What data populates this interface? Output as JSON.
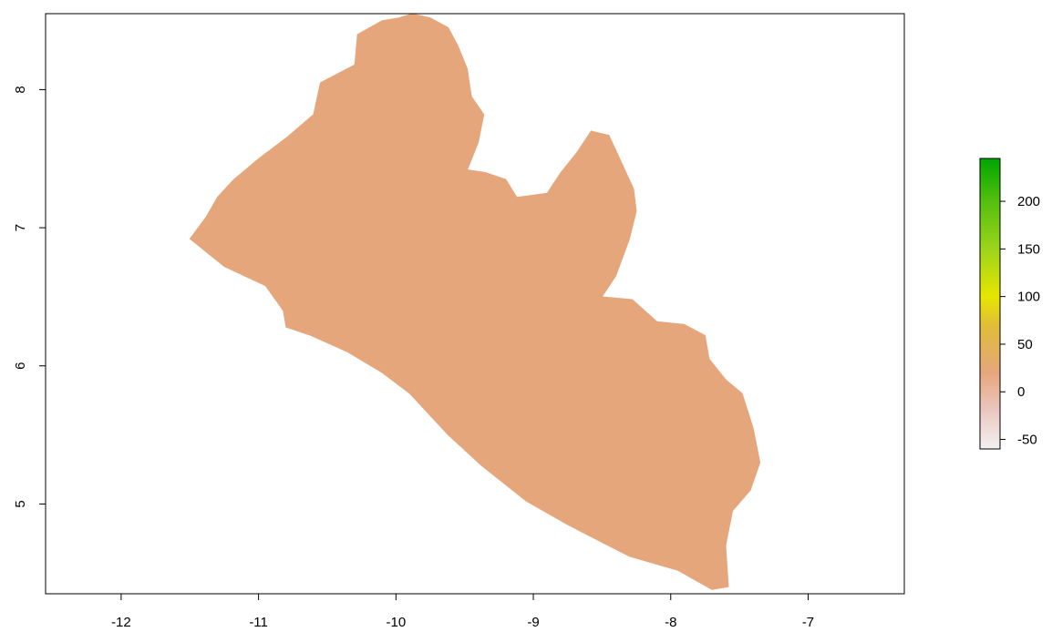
{
  "chart_data": {
    "type": "heatmap",
    "title": "",
    "xlabel": "",
    "ylabel": "",
    "xlim": [
      -12.55,
      -6.3
    ],
    "ylim": [
      4.35,
      8.55
    ],
    "x_ticks": [
      {
        "value": -12,
        "label": "-12"
      },
      {
        "value": -11,
        "label": "-11"
      },
      {
        "value": -10,
        "label": "-10"
      },
      {
        "value": -9,
        "label": "-9"
      },
      {
        "value": -8,
        "label": "-8"
      },
      {
        "value": -7,
        "label": "-7"
      }
    ],
    "y_ticks": [
      {
        "value": 5,
        "label": "5"
      },
      {
        "value": 6,
        "label": "6"
      },
      {
        "value": 7,
        "label": "7"
      },
      {
        "value": 8,
        "label": "8"
      }
    ],
    "region": {
      "fill_color": "#E6A67C",
      "approx_value": 10,
      "outline_lonlat": [
        [
          -9.98,
          8.52
        ],
        [
          -9.88,
          8.55
        ],
        [
          -9.75,
          8.52
        ],
        [
          -9.62,
          8.45
        ],
        [
          -9.55,
          8.32
        ],
        [
          -9.48,
          8.15
        ],
        [
          -9.45,
          7.95
        ],
        [
          -9.36,
          7.82
        ],
        [
          -9.4,
          7.62
        ],
        [
          -9.48,
          7.42
        ],
        [
          -9.35,
          7.4
        ],
        [
          -9.2,
          7.35
        ],
        [
          -9.12,
          7.22
        ],
        [
          -8.9,
          7.25
        ],
        [
          -8.8,
          7.4
        ],
        [
          -8.68,
          7.55
        ],
        [
          -8.58,
          7.7
        ],
        [
          -8.45,
          7.67
        ],
        [
          -8.38,
          7.52
        ],
        [
          -8.27,
          7.28
        ],
        [
          -8.25,
          7.12
        ],
        [
          -8.3,
          6.92
        ],
        [
          -8.4,
          6.65
        ],
        [
          -8.5,
          6.5
        ],
        [
          -8.28,
          6.48
        ],
        [
          -8.1,
          6.32
        ],
        [
          -7.9,
          6.3
        ],
        [
          -7.75,
          6.22
        ],
        [
          -7.72,
          6.05
        ],
        [
          -7.6,
          5.9
        ],
        [
          -7.48,
          5.8
        ],
        [
          -7.4,
          5.55
        ],
        [
          -7.35,
          5.3
        ],
        [
          -7.42,
          5.1
        ],
        [
          -7.55,
          4.95
        ],
        [
          -7.6,
          4.7
        ],
        [
          -7.58,
          4.4
        ],
        [
          -7.7,
          4.38
        ],
        [
          -7.95,
          4.52
        ],
        [
          -8.3,
          4.62
        ],
        [
          -8.75,
          4.85
        ],
        [
          -9.05,
          5.02
        ],
        [
          -9.38,
          5.28
        ],
        [
          -9.62,
          5.5
        ],
        [
          -9.9,
          5.8
        ],
        [
          -10.1,
          5.95
        ],
        [
          -10.35,
          6.1
        ],
        [
          -10.62,
          6.22
        ],
        [
          -10.8,
          6.28
        ],
        [
          -10.82,
          6.4
        ],
        [
          -10.95,
          6.58
        ],
        [
          -11.25,
          6.72
        ],
        [
          -11.5,
          6.92
        ],
        [
          -11.38,
          7.08
        ],
        [
          -11.3,
          7.22
        ],
        [
          -11.18,
          7.35
        ],
        [
          -11.0,
          7.5
        ],
        [
          -10.8,
          7.65
        ],
        [
          -10.6,
          7.82
        ],
        [
          -10.55,
          8.05
        ],
        [
          -10.3,
          8.18
        ],
        [
          -10.28,
          8.4
        ],
        [
          -10.1,
          8.5
        ]
      ]
    },
    "legend": {
      "placement": "right",
      "min": -60,
      "max": 245,
      "ticks": [
        {
          "value": 200,
          "label": "200"
        },
        {
          "value": 150,
          "label": "150"
        },
        {
          "value": 100,
          "label": "100"
        },
        {
          "value": 50,
          "label": "50"
        },
        {
          "value": 0,
          "label": "0"
        },
        {
          "value": -50,
          "label": "-50"
        }
      ],
      "color_stops": [
        {
          "value": -60,
          "color": "#F2F2F2"
        },
        {
          "value": -20,
          "color": "#EBC7C0"
        },
        {
          "value": 20,
          "color": "#E6A67C"
        },
        {
          "value": 70,
          "color": "#E0BE37"
        },
        {
          "value": 100,
          "color": "#E6E600"
        },
        {
          "value": 150,
          "color": "#9CD41B"
        },
        {
          "value": 200,
          "color": "#54BF0F"
        },
        {
          "value": 245,
          "color": "#00A600"
        }
      ]
    }
  }
}
